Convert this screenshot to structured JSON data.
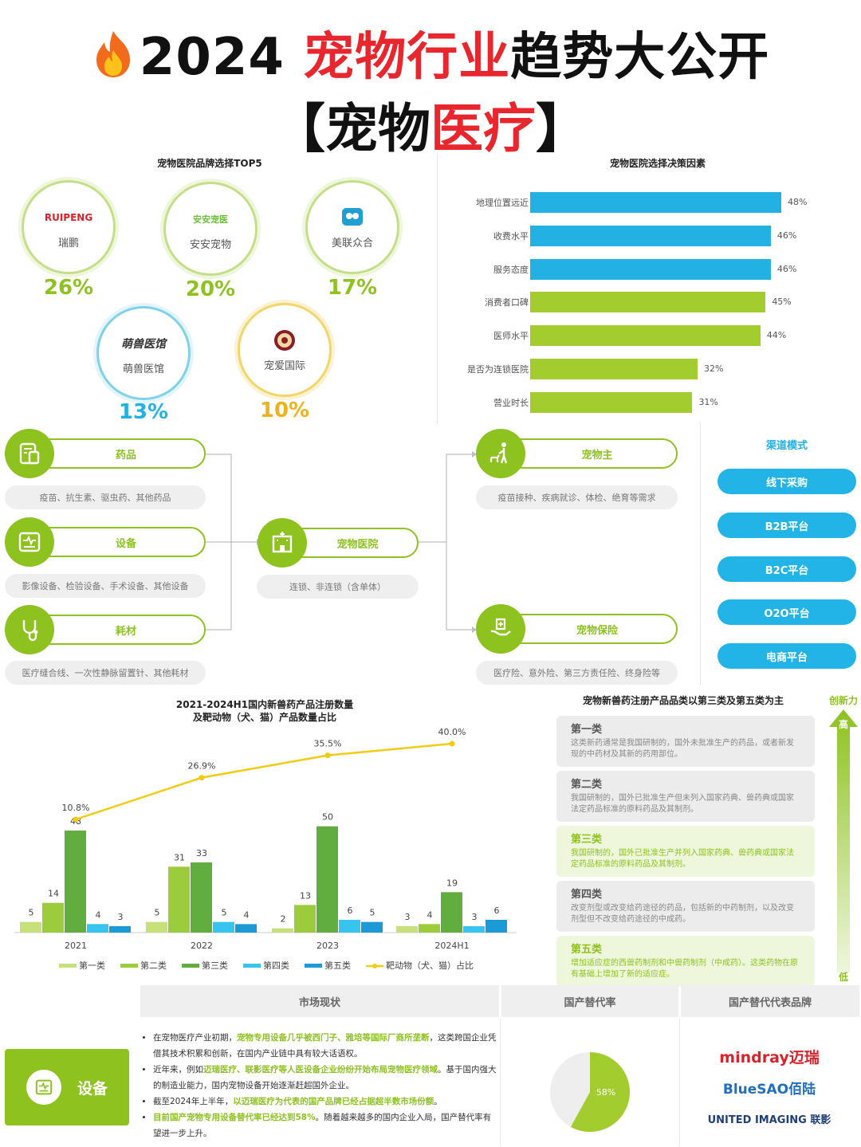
{
  "title": {
    "line1_black": "2024 ",
    "line1_red": "宠物行业",
    "line1_black2": "趋势大公开",
    "line2_open": "【宠物",
    "line2_red": "医疗",
    "line2_close": "】"
  },
  "brands": {
    "title": "宠物医院品牌选择TOP5",
    "items": [
      {
        "logo": "RUIPENG",
        "name": "瑞鹏",
        "pct": "26%"
      },
      {
        "logo": "安安宠医",
        "name": "安安宠物",
        "pct": "20%"
      },
      {
        "logo": "美联众合",
        "name": "美联众合",
        "pct": "17%"
      },
      {
        "logo": "萌兽医馆",
        "name": "萌兽医馆",
        "pct": "13%"
      },
      {
        "logo": "宠爱国际",
        "name": "宠爱国际",
        "pct": "10%"
      }
    ]
  },
  "factors": {
    "title": "宠物医院选择决策因素",
    "items": [
      {
        "label": "地理位置远近",
        "value": 48,
        "text": "48%"
      },
      {
        "label": "收费水平",
        "value": 46,
        "text": "46%"
      },
      {
        "label": "服务态度",
        "value": 46,
        "text": "46%"
      },
      {
        "label": "消费者口碑",
        "value": 45,
        "text": "45%"
      },
      {
        "label": "医师水平",
        "value": 44,
        "text": "44%"
      },
      {
        "label": "是否为连锁医院",
        "value": 32,
        "text": "32%"
      },
      {
        "label": "营业时长",
        "value": 31,
        "text": "31%"
      }
    ],
    "colors": [
      "#23b1e3",
      "#23b1e3",
      "#23b1e3",
      "#a3cc2f",
      "#a3cc2f",
      "#a3cc2f",
      "#a3cc2f"
    ]
  },
  "flow": {
    "left": [
      {
        "name": "药品",
        "desc": "疫苗、抗生素、驱虫药、其他药品"
      },
      {
        "name": "设备",
        "desc": "影像设备、检验设备、手术设备、其他设备"
      },
      {
        "name": "耗材",
        "desc": "医疗缝合线、一次性静脉留置针、其他耗材"
      }
    ],
    "center": {
      "name": "宠物医院",
      "desc": "连锁、非连锁（含单体）"
    },
    "right": [
      {
        "name": "宠物主",
        "desc": "疫苗接种、疾病就诊、体检、绝育等需求"
      },
      {
        "name": "宠物保险",
        "desc": "医疗险、意外险、第三方责任险、终身险等"
      }
    ]
  },
  "channels": {
    "title": "渠道模式",
    "items": [
      "线下采购",
      "B2B平台",
      "B2C平台",
      "O2O平台",
      "电商平台"
    ]
  },
  "chart_data": {
    "type": "bar",
    "title": "2021-2024H1国内新兽药产品注册数量",
    "subtitle": "及靶动物（犬、猫）产品数量占比",
    "categories": [
      "2021",
      "2022",
      "2023",
      "2024H1"
    ],
    "series": [
      {
        "name": "第一类",
        "values": [
          5,
          5,
          2,
          3
        ],
        "color": "#c8e07a"
      },
      {
        "name": "第二类",
        "values": [
          14,
          31,
          13,
          4
        ],
        "color": "#9ccc3c"
      },
      {
        "name": "第三类",
        "values": [
          48,
          33,
          50,
          19
        ],
        "color": "#62ad3f"
      },
      {
        "name": "第四类",
        "values": [
          4,
          5,
          6,
          3
        ],
        "color": "#37c5ef"
      },
      {
        "name": "第五类",
        "values": [
          3,
          4,
          5,
          6
        ],
        "color": "#1b9ad6"
      }
    ],
    "line": {
      "name": "靶动物（犬、猫）占比",
      "values": [
        10.8,
        26.9,
        35.5,
        40.0
      ],
      "labels": [
        "10.8%",
        "26.9%",
        "35.5%",
        "40.0%"
      ],
      "color": "#f2cc12"
    },
    "ylim": [
      0,
      55
    ]
  },
  "classes": {
    "title": "宠物新兽药注册产品品类以第三类及第五类为主",
    "items": [
      {
        "name": "第一类",
        "desc": "这类新药通常是我国研制的，国外未批准生产的药品，或者新发现的中药材及其新的药用部位。",
        "hl": false
      },
      {
        "name": "第二类",
        "desc": "我国研制的，国外已批准生产但未列入国家药典、兽药典或国家法定药品标准的原料药品及其制剂。",
        "hl": false
      },
      {
        "name": "第三类",
        "desc": "我国研制的，国外已批准生产并列入国家药典、兽药典或国家法定药品标准的原料药品及其制剂。",
        "hl": true
      },
      {
        "name": "第四类",
        "desc": "改变剂型或改变给药途径的药品，包括新的中药制剂，以及改变剂型但不改变给药途径的中成药。",
        "hl": false
      },
      {
        "name": "第五类",
        "desc": "增加适应症的西兽药制剂和中兽药制剂（中成药）。这类药物在原有基础上增加了新的适应症。",
        "hl": true
      }
    ],
    "axis_top": "创新力",
    "axis_high": "高",
    "axis_low": "低"
  },
  "table": {
    "headers": [
      "市场现状",
      "国产替代率",
      "国产替代代表品牌"
    ],
    "row_label": "设备",
    "bullets": [
      {
        "pre": "在宠物医疗产业初期，",
        "hl": "宠物专用设备几乎被西门子、雅培等国际厂商所垄断",
        "post": "，这类跨国企业凭借其技术积累和创新，在国内产业链中具有较大话语权。"
      },
      {
        "pre": "近年来，例如",
        "hl": "迈瑞医疗、联影医疗等人医设备企业纷纷开始布局宠物医疗领域",
        "post": "。基于国内强大的制造业能力，国内宠物设备开始逐渐赶超国外企业。"
      },
      {
        "pre": "截至2024年上半年，",
        "hl": "以迈瑞医疗为代表的国产品牌已经占据超半数市场份额",
        "post": "。"
      },
      {
        "pre": "",
        "hl": "目前国产宠物专用设备替代率已经达到58%",
        "post": "。随着越来越多的国内企业入局，国产替代率有望进一步上升。"
      }
    ],
    "pie": {
      "value": 58,
      "label": "58%",
      "color": "#a3cc2f",
      "rest_color": "#eeeeee"
    },
    "logos": [
      {
        "text": "mindray迈瑞",
        "color": "#d8232a"
      },
      {
        "text": "BlueSAO佰陆",
        "color": "#1f6fc0"
      },
      {
        "text": "UNITED IMAGING 联影",
        "color": "#1f3f7a"
      }
    ]
  }
}
